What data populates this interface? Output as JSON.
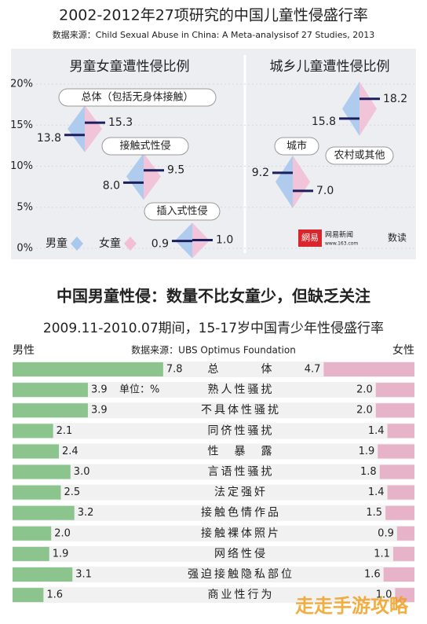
{
  "header": {
    "title": "2002-2012年27项研究的中国儿童性侵盛行率",
    "source": "数据来源：Child Sexual Abuse in China: A Meta-analysisof 27 Studies, 2013"
  },
  "chart_data": [
    {
      "type": "diamond-pair",
      "title": "男童女童遭性侵比例",
      "categories": [
        "总体（包括无身体接触）",
        "接触式性侵",
        "插入式性侵"
      ],
      "series": [
        {
          "name": "男童",
          "color": "#a9c8ee",
          "values": [
            13.8,
            8.0,
            0.9
          ]
        },
        {
          "name": "女童",
          "color": "#f3bfd6",
          "values": [
            15.3,
            9.5,
            1.0
          ]
        }
      ],
      "value_labels": [
        [
          "13.8",
          "8.0",
          "0.9"
        ],
        [
          "15.3",
          "9.5",
          "1.0"
        ]
      ],
      "ylim": [
        0,
        20
      ],
      "yticks": [
        {
          "value": 0,
          "label": "0%"
        },
        {
          "value": 5,
          "label": "5%"
        },
        {
          "value": 10,
          "label": "10%"
        },
        {
          "value": 15,
          "label": "15%"
        },
        {
          "value": 20,
          "label": "20%"
        }
      ],
      "legend": "bottom-left"
    },
    {
      "type": "diamond-pair",
      "title": "城乡儿童遭性侵比例",
      "categories": [
        null,
        "城市/农村或其他"
      ],
      "series": [
        {
          "name": "城市",
          "color": "#a9c8ee",
          "values": [
            15.8,
            9.2
          ]
        },
        {
          "name": "农村或其他",
          "color": "#f3bfd6",
          "values": [
            18.2,
            7.0
          ]
        }
      ],
      "value_labels": [
        [
          "15.8",
          "9.2"
        ],
        [
          "18.2",
          "7.0"
        ]
      ],
      "ylim": [
        0,
        20
      ]
    },
    {
      "type": "butterfly-bar",
      "heading": "中国男童性侵：数量不比女童少，但缺乏关注",
      "title": "2009.11-2010.07期间，15-17岁中国青少年性侵盛行率",
      "source": "数据来源：UBS Optimus Foundation",
      "unit": "单位：%",
      "categories": [
        "总　　　体",
        "熟人性骚扰",
        "不具体性骚扰",
        "同侪性骚扰",
        "性　暴　露",
        "言语性骚扰",
        "法定强奸",
        "接触色情作品",
        "接触裸体照片",
        "网络性侵",
        "强迫接触隐私部位",
        "商业性行为"
      ],
      "series": [
        {
          "name": "男性",
          "color": "#8cc48e",
          "values": [
            7.8,
            3.9,
            3.9,
            2.1,
            2.4,
            3.0,
            2.5,
            3.2,
            2.0,
            1.9,
            3.1,
            1.6
          ],
          "value_labels": [
            "7.8",
            "3.9",
            "3.9",
            "2.1",
            "2.4",
            "3.0",
            "2.5",
            "3.2",
            "2.0",
            "1.9",
            "3.1",
            "1.6"
          ]
        },
        {
          "name": "女性",
          "color": "#e7b3c8",
          "values": [
            4.7,
            2.0,
            2.0,
            1.4,
            1.9,
            1.8,
            1.4,
            1.5,
            0.9,
            1.1,
            1.6,
            1.0
          ],
          "value_labels": [
            "4.7",
            "2.0",
            "2.0",
            "1.4",
            "1.9",
            "1.8",
            "1.4",
            "1.5",
            "0.9",
            "1.1",
            "1.6",
            "1.0"
          ]
        }
      ]
    }
  ],
  "brand": {
    "logo": "網易",
    "name": "网易新闻",
    "site": "www.163.com",
    "column": "数读"
  },
  "watermark": "走走手游攻略"
}
